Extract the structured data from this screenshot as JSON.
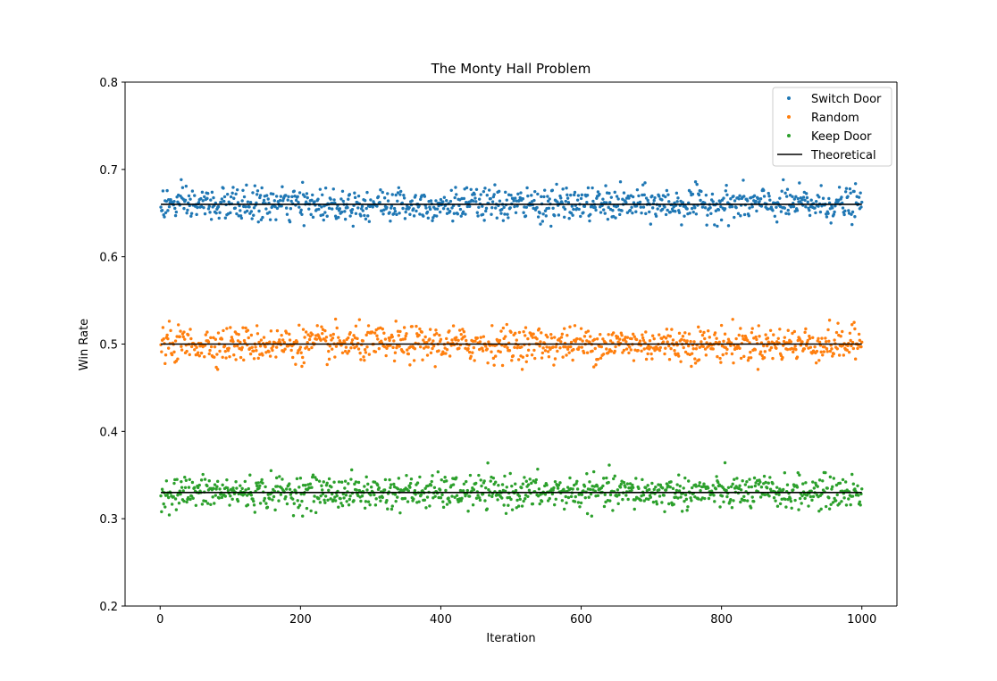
{
  "chart_data": {
    "type": "scatter",
    "title": "The Monty Hall Problem",
    "xlabel": "Iteration",
    "ylabel": "Win Rate",
    "xlim": [
      -50,
      1050
    ],
    "ylim": [
      0.2,
      0.8
    ],
    "xticks": [
      0,
      200,
      400,
      600,
      800,
      1000
    ],
    "yticks": [
      0.2,
      0.3,
      0.4,
      0.5,
      0.6,
      0.7,
      0.8
    ],
    "ytick_labels": [
      "0.2",
      "0.3",
      "0.4",
      "0.5",
      "0.6",
      "0.7",
      "0.8"
    ],
    "grid": false,
    "legend_position": "top-right",
    "x": {
      "start": 1,
      "end": 1000,
      "count": 1000
    },
    "series": [
      {
        "name": "Switch Door",
        "color": "#1f77b4",
        "mean": 0.66,
        "std": 0.0095,
        "min": 0.635,
        "max": 0.694
      },
      {
        "name": "Random",
        "color": "#ff7f0e",
        "mean": 0.5,
        "std": 0.01,
        "min": 0.471,
        "max": 0.529
      },
      {
        "name": "Keep Door",
        "color": "#2ca02c",
        "mean": 0.33,
        "std": 0.0095,
        "min": 0.303,
        "max": 0.367
      }
    ],
    "theoretical": {
      "name": "Theoretical",
      "color": "#000000",
      "values": [
        0.66,
        0.5,
        0.33
      ],
      "x_range": [
        1,
        1000
      ]
    },
    "legend": [
      "Switch Door",
      "Random",
      "Keep Door",
      "Theoretical"
    ]
  }
}
